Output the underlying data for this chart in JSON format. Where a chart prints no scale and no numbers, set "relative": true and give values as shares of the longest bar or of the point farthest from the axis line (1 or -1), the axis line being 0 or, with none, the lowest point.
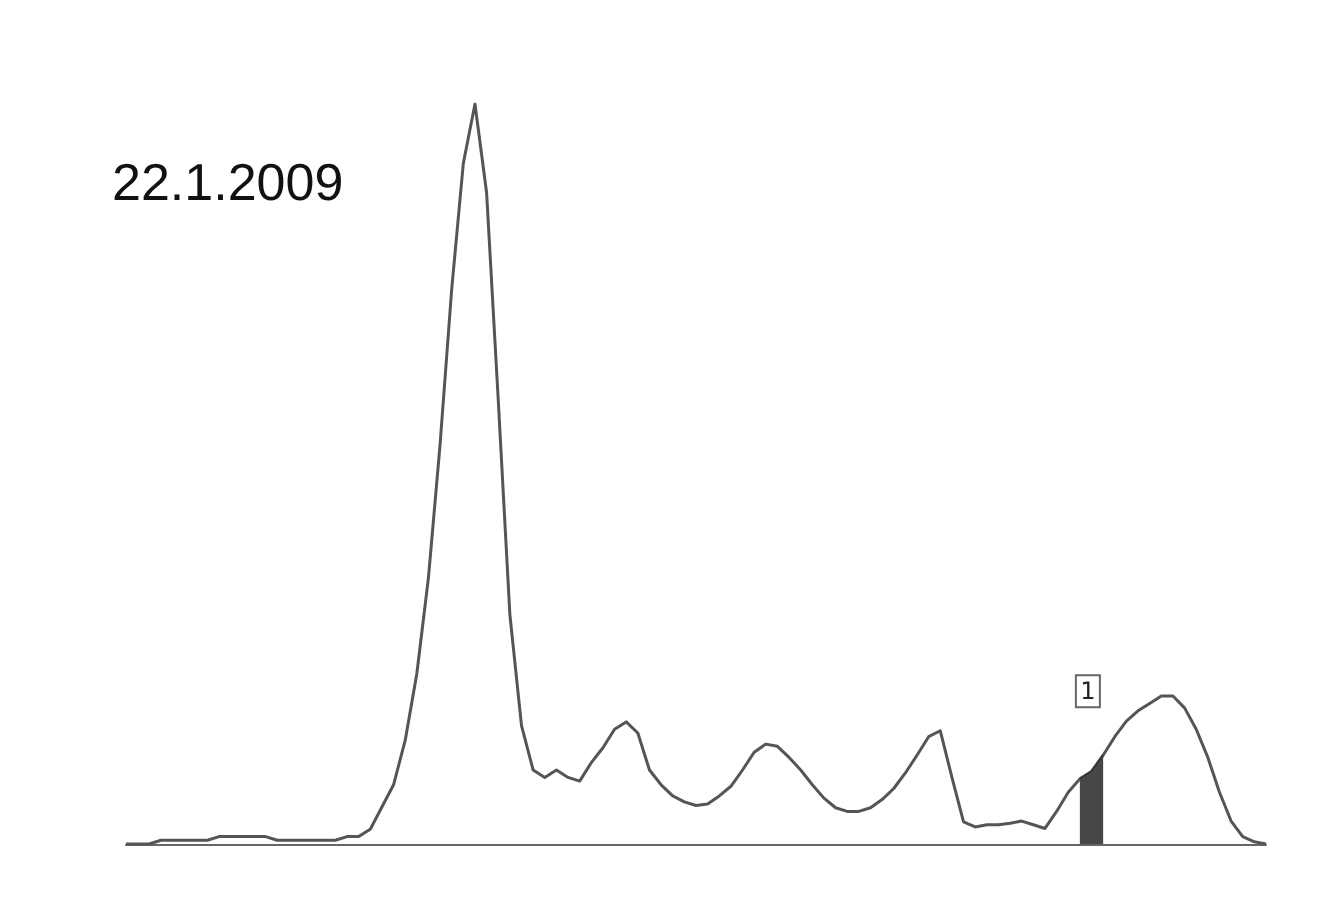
{
  "chart_data": {
    "type": "line",
    "relative": true,
    "annotations": [
      "22.1.2009",
      "1"
    ],
    "categories": [
      null,
      null,
      null,
      null,
      null,
      null,
      null,
      null,
      null,
      null,
      null,
      null,
      null,
      null,
      null,
      null,
      null,
      null,
      null,
      null,
      null,
      null,
      null,
      null,
      null,
      null,
      null,
      null,
      null,
      null,
      null,
      null,
      null,
      null,
      null,
      null,
      null,
      null,
      null,
      null,
      null,
      null,
      null,
      null,
      null,
      null,
      null,
      null,
      null,
      null,
      null,
      null,
      null,
      null,
      null,
      null,
      null,
      null,
      null,
      null,
      null,
      null,
      null,
      null,
      null,
      null,
      null,
      null,
      null,
      null,
      null,
      null,
      null,
      null,
      null,
      null,
      null,
      null,
      null,
      null,
      null,
      null,
      null,
      null,
      null,
      null,
      null,
      null,
      null,
      null,
      null,
      null,
      null,
      null,
      null,
      null,
      null,
      null,
      null
    ],
    "series": [
      {
        "color": "#555555",
        "values": [
          0,
          0,
          0,
          0.005,
          0.005,
          0.005,
          0.005,
          0.005,
          0.01,
          0.01,
          0.01,
          0.01,
          0.01,
          0.005,
          0.005,
          0.005,
          0.005,
          0.005,
          0.005,
          0.01,
          0.01,
          0.02,
          0.05,
          0.08,
          0.14,
          0.23,
          0.36,
          0.54,
          0.75,
          0.92,
          1,
          0.88,
          0.6,
          0.31,
          0.16,
          0.1,
          0.09,
          0.1,
          0.09,
          0.085,
          0.11,
          0.13,
          0.155,
          0.165,
          0.15,
          0.1,
          0.08,
          0.065,
          0.057,
          0.052,
          0.054,
          0.065,
          0.078,
          0.1,
          0.124,
          0.135,
          0.132,
          0.117,
          0.1,
          0.08,
          0.062,
          0.049,
          0.044,
          0.044,
          0.049,
          0.06,
          0.075,
          0.096,
          0.12,
          0.145,
          0.153,
          0.09,
          0.03,
          0.023,
          0.026,
          0.026,
          0.028,
          0.031,
          0.026,
          0.021,
          0.044,
          0.07,
          0.088,
          0.098,
          0.12,
          0.145,
          0.166,
          0.18,
          0.19,
          0.2,
          0.2,
          0.184,
          0.155,
          0.117,
          0.07,
          0.031,
          0.01,
          0.003,
          0
        ]
      },
      {
        "type": "area",
        "color": "#333333",
        "values": [
          null,
          null,
          null,
          null,
          null,
          null,
          null,
          null,
          null,
          null,
          null,
          null,
          null,
          null,
          null,
          null,
          null,
          null,
          null,
          null,
          null,
          null,
          null,
          null,
          null,
          null,
          null,
          null,
          null,
          null,
          null,
          null,
          null,
          null,
          null,
          null,
          null,
          null,
          null,
          null,
          null,
          null,
          null,
          null,
          null,
          null,
          null,
          null,
          null,
          null,
          null,
          null,
          null,
          null,
          null,
          null,
          null,
          null,
          null,
          null,
          null,
          null,
          null,
          null,
          null,
          null,
          null,
          null,
          null,
          null,
          null,
          null,
          null,
          null,
          null,
          null,
          null,
          null,
          null,
          null,
          null,
          null,
          0.088,
          0.098,
          0.12,
          null,
          null,
          null,
          null,
          null,
          null,
          null,
          null,
          null,
          null,
          null,
          null,
          null,
          null
        ]
      }
    ]
  }
}
